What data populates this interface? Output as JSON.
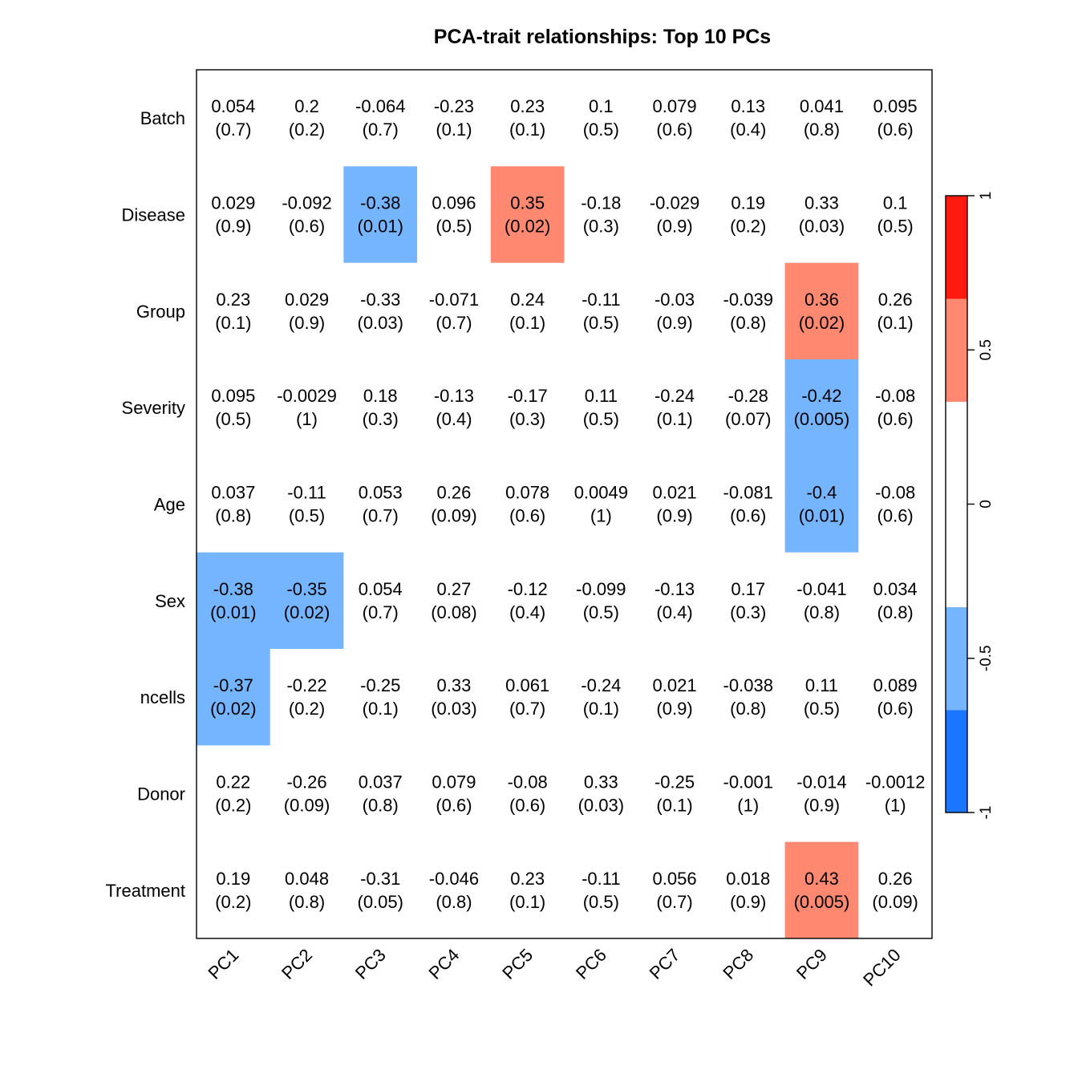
{
  "chart_data": {
    "type": "heatmap",
    "title": "PCA-trait relationships: Top 10 PCs",
    "columns": [
      "PC1",
      "PC2",
      "PC3",
      "PC4",
      "PC5",
      "PC6",
      "PC7",
      "PC8",
      "PC9",
      "PC10"
    ],
    "rows": [
      "Batch",
      "Disease",
      "Group",
      "Severity",
      "Age",
      "Sex",
      "ncells",
      "Donor",
      "Treatment"
    ],
    "correlations": [
      [
        "0.054",
        "0.2",
        "-0.064",
        "-0.23",
        "0.23",
        "0.1",
        "0.079",
        "0.13",
        "0.041",
        "0.095"
      ],
      [
        "0.029",
        "-0.092",
        "-0.38",
        "0.096",
        "0.35",
        "-0.18",
        "-0.029",
        "0.19",
        "0.33",
        "0.1"
      ],
      [
        "0.23",
        "0.029",
        "-0.33",
        "-0.071",
        "0.24",
        "-0.11",
        "-0.03",
        "-0.039",
        "0.36",
        "0.26"
      ],
      [
        "0.095",
        "-0.0029",
        "0.18",
        "-0.13",
        "-0.17",
        "0.11",
        "-0.24",
        "-0.28",
        "-0.42",
        "-0.08"
      ],
      [
        "0.037",
        "-0.11",
        "0.053",
        "0.26",
        "0.078",
        "0.0049",
        "0.021",
        "-0.081",
        "-0.4",
        "-0.08"
      ],
      [
        "-0.38",
        "-0.35",
        "0.054",
        "0.27",
        "-0.12",
        "-0.099",
        "-0.13",
        "0.17",
        "-0.041",
        "0.034"
      ],
      [
        "-0.37",
        "-0.22",
        "-0.25",
        "0.33",
        "0.061",
        "-0.24",
        "0.021",
        "-0.038",
        "0.11",
        "0.089"
      ],
      [
        "0.22",
        "-0.26",
        "0.037",
        "0.079",
        "-0.08",
        "0.33",
        "-0.25",
        "-0.001",
        "-0.014",
        "-0.0012"
      ],
      [
        "0.19",
        "0.048",
        "-0.31",
        "-0.046",
        "0.23",
        "-0.11",
        "0.056",
        "0.018",
        "0.43",
        "0.26"
      ]
    ],
    "pvalues": [
      [
        "(0.7)",
        "(0.2)",
        "(0.7)",
        "(0.1)",
        "(0.1)",
        "(0.5)",
        "(0.6)",
        "(0.4)",
        "(0.8)",
        "(0.6)"
      ],
      [
        "(0.9)",
        "(0.6)",
        "(0.01)",
        "(0.5)",
        "(0.02)",
        "(0.3)",
        "(0.9)",
        "(0.2)",
        "(0.03)",
        "(0.5)"
      ],
      [
        "(0.1)",
        "(0.9)",
        "(0.03)",
        "(0.7)",
        "(0.1)",
        "(0.5)",
        "(0.9)",
        "(0.8)",
        "(0.02)",
        "(0.1)"
      ],
      [
        "(0.5)",
        "(1)",
        "(0.3)",
        "(0.4)",
        "(0.3)",
        "(0.5)",
        "(0.1)",
        "(0.07)",
        "(0.005)",
        "(0.6)"
      ],
      [
        "(0.8)",
        "(0.5)",
        "(0.7)",
        "(0.09)",
        "(0.6)",
        "(1)",
        "(0.9)",
        "(0.6)",
        "(0.01)",
        "(0.6)"
      ],
      [
        "(0.01)",
        "(0.02)",
        "(0.7)",
        "(0.08)",
        "(0.4)",
        "(0.5)",
        "(0.4)",
        "(0.3)",
        "(0.8)",
        "(0.8)"
      ],
      [
        "(0.02)",
        "(0.2)",
        "(0.1)",
        "(0.03)",
        "(0.7)",
        "(0.1)",
        "(0.9)",
        "(0.8)",
        "(0.5)",
        "(0.6)"
      ],
      [
        "(0.2)",
        "(0.09)",
        "(0.8)",
        "(0.6)",
        "(0.6)",
        "(0.03)",
        "(0.1)",
        "(1)",
        "(0.9)",
        "(1)"
      ],
      [
        "(0.2)",
        "(0.8)",
        "(0.05)",
        "(0.8)",
        "(0.1)",
        "(0.5)",
        "(0.7)",
        "(0.9)",
        "(0.005)",
        "(0.09)"
      ]
    ],
    "color_scale": {
      "range": [
        -1,
        1
      ],
      "ticks": [
        "-1",
        "-0.5",
        "0",
        "0.5",
        "1"
      ],
      "bins": [
        {
          "from": -1.0,
          "to": -0.667,
          "color": "#1a75ff"
        },
        {
          "from": -0.667,
          "to": -0.333,
          "color": "#75b5ff"
        },
        {
          "from": -0.333,
          "to": 0.333,
          "color": "#ffffff"
        },
        {
          "from": 0.333,
          "to": 0.667,
          "color": "#ff8870"
        },
        {
          "from": 0.667,
          "to": 1.0,
          "color": "#ff1a10"
        }
      ]
    }
  }
}
